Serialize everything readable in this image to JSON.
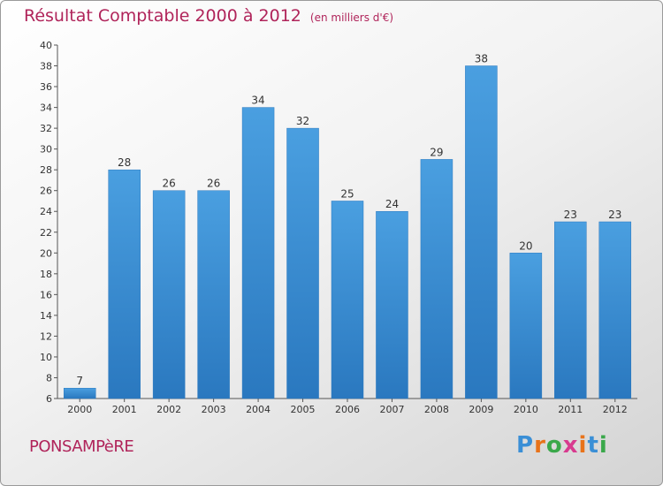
{
  "chart_data": {
    "type": "bar",
    "title": "Résultat Comptable 2000 à 2012",
    "unit_note": "(en milliers d'€)",
    "categories": [
      "2000",
      "2001",
      "2002",
      "2003",
      "2004",
      "2005",
      "2006",
      "2007",
      "2008",
      "2009",
      "2010",
      "2011",
      "2012"
    ],
    "values": [
      7,
      28,
      26,
      26,
      34,
      32,
      25,
      24,
      29,
      38,
      20,
      23,
      23
    ],
    "ylim": [
      6,
      40
    ],
    "yticks": [
      6,
      8,
      10,
      12,
      14,
      16,
      18,
      20,
      22,
      24,
      26,
      28,
      30,
      32,
      34,
      36,
      38,
      40
    ],
    "xlabel": "",
    "ylabel": "",
    "grid": false,
    "bar_color": "#4a9fe0",
    "bar_color_dark": "#2a78bf"
  },
  "footer": {
    "town": "PONSAMPèRE",
    "brand_letters": [
      "P",
      "r",
      "o",
      "x",
      "i",
      "t",
      "i"
    ],
    "brand_colors": [
      "#3a8fd6",
      "#e8731a",
      "#3aa84a",
      "#d83a8f",
      "#e8731a",
      "#3a8fd6",
      "#3aa84a"
    ]
  },
  "colors": {
    "accent": "#b0245a"
  }
}
